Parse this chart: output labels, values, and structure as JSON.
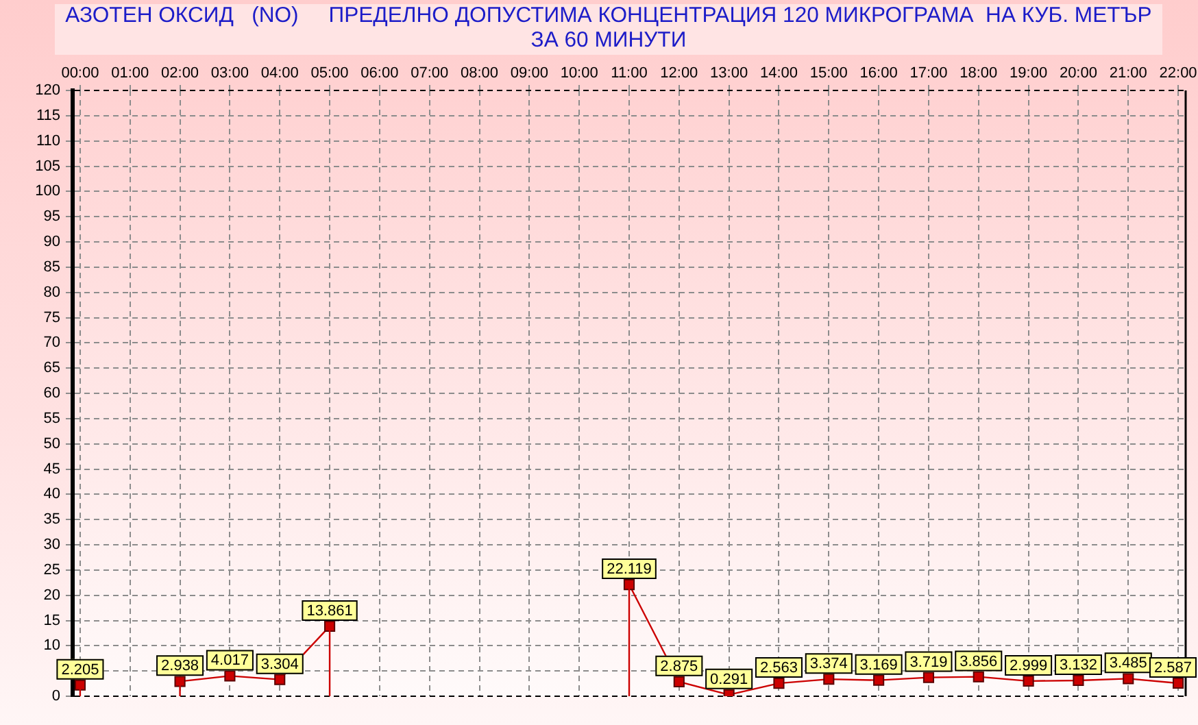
{
  "chart_data": {
    "type": "line",
    "title": "АЗОТЕН ОКСИД   (NO)     ПРЕДЕЛНО ДОПУСТИМА КОНЦЕНТРАЦИЯ 120 МИКРОГРАМА  НА КУБ. МЕТЪР",
    "subtitle": "ЗА 60 МИНУТИ",
    "x": [
      0,
      1,
      2,
      3,
      4,
      5,
      6,
      7,
      8,
      9,
      10,
      11,
      12,
      13,
      14,
      15,
      16,
      17,
      18,
      19,
      20,
      21,
      22
    ],
    "series": [
      {
        "color": "#cc0000",
        "values": [
          2.205,
          null,
          2.938,
          4.017,
          3.304,
          13.861,
          null,
          null,
          null,
          null,
          null,
          22.119,
          2.875,
          0.291,
          2.563,
          3.374,
          3.169,
          3.719,
          3.856,
          2.999,
          3.132,
          3.485,
          2.587
        ]
      }
    ],
    "xlim": [
      -0.15,
      22.15
    ],
    "xticks": [
      {
        "value": 0,
        "label": "00:00"
      },
      {
        "value": 1,
        "label": "01:00"
      },
      {
        "value": 2,
        "label": "02:00"
      },
      {
        "value": 3,
        "label": "03:00"
      },
      {
        "value": 4,
        "label": "04:00"
      },
      {
        "value": 5,
        "label": "05:00"
      },
      {
        "value": 6,
        "label": "06:00"
      },
      {
        "value": 7,
        "label": "07:00"
      },
      {
        "value": 8,
        "label": "08:00"
      },
      {
        "value": 9,
        "label": "09:00"
      },
      {
        "value": 10,
        "label": "10:00"
      },
      {
        "value": 11,
        "label": "11:00"
      },
      {
        "value": 12,
        "label": "12:00"
      },
      {
        "value": 13,
        "label": "13:00"
      },
      {
        "value": 14,
        "label": "14:00"
      },
      {
        "value": 15,
        "label": "15:00"
      },
      {
        "value": 16,
        "label": "16:00"
      },
      {
        "value": 17,
        "label": "17:00"
      },
      {
        "value": 18,
        "label": "18:00"
      },
      {
        "value": 19,
        "label": "19:00"
      },
      {
        "value": 20,
        "label": "20:00"
      },
      {
        "value": 21,
        "label": "21:00"
      },
      {
        "value": 22,
        "label": "22:00"
      }
    ],
    "ylim": [
      0,
      120
    ],
    "yticks": [
      0,
      {
        "value": 5,
        "label": null
      },
      10,
      15,
      20,
      25,
      30,
      35,
      40,
      45,
      50,
      55,
      60,
      65,
      70,
      75,
      80,
      85,
      90,
      95,
      100,
      105,
      110,
      115,
      120
    ],
    "grid": true,
    "marker": "square",
    "line_style": "solid",
    "data_labels": true
  }
}
